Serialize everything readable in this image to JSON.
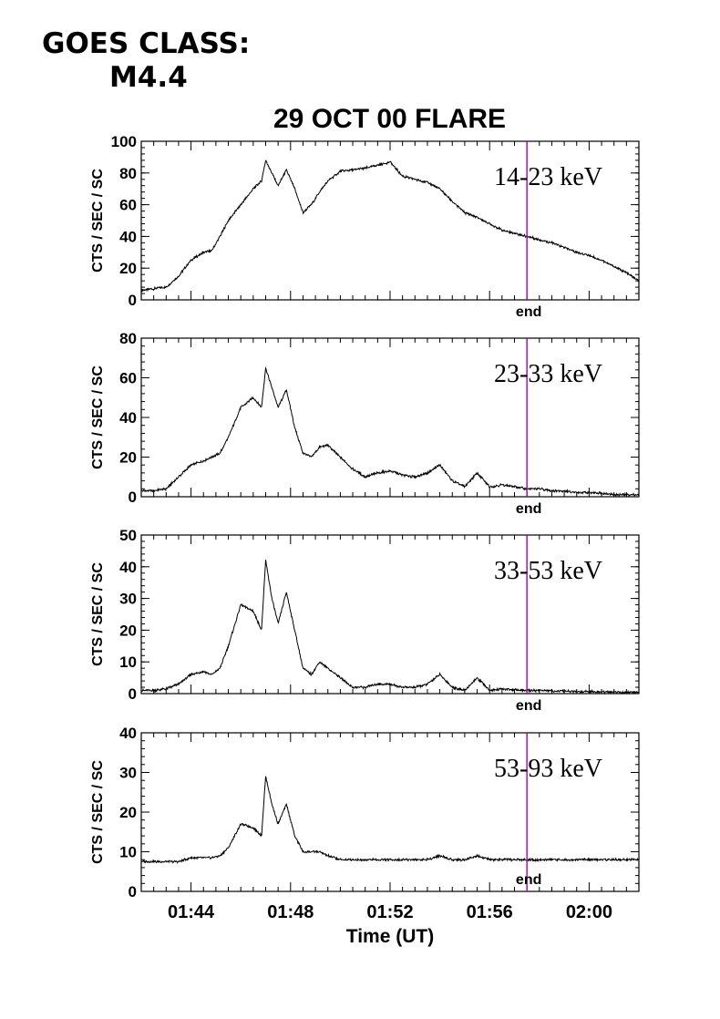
{
  "header": {
    "goes_label": "GOES CLASS:",
    "goes_value": "M4.4",
    "title": "29 OCT 00 FLARE"
  },
  "chart_data": [
    {
      "type": "line",
      "band": "14-23 keV",
      "ylabel": "CTS / SEC / SC",
      "ylim": [
        0,
        100
      ],
      "yticks": [
        0,
        20,
        40,
        60,
        80,
        100
      ],
      "xlim": [
        "01:42:00",
        "02:02:00"
      ],
      "end_marker": {
        "time": "01:57:30",
        "label": "end"
      },
      "x": [
        "01:42:00",
        "01:42:30",
        "01:43:00",
        "01:43:30",
        "01:44:00",
        "01:44:30",
        "01:44:50",
        "01:45:10",
        "01:45:30",
        "01:46:00",
        "01:46:30",
        "01:46:50",
        "01:47:00",
        "01:47:15",
        "01:47:30",
        "01:47:50",
        "01:48:10",
        "01:48:30",
        "01:48:50",
        "01:49:10",
        "01:49:30",
        "01:50:00",
        "01:50:30",
        "01:51:00",
        "01:51:30",
        "01:52:00",
        "01:52:30",
        "01:53:00",
        "01:53:30",
        "01:54:00",
        "01:54:30",
        "01:55:00",
        "01:55:30",
        "01:56:00",
        "01:56:30",
        "01:57:00",
        "01:57:30",
        "01:58:00",
        "01:58:30",
        "01:59:00",
        "01:59:30",
        "02:00:00",
        "02:00:30",
        "02:01:00",
        "02:01:30",
        "02:02:00"
      ],
      "y": [
        6,
        7,
        8,
        15,
        25,
        30,
        31,
        40,
        50,
        60,
        70,
        75,
        88,
        80,
        72,
        82,
        70,
        55,
        60,
        68,
        75,
        81,
        82,
        83,
        85,
        87,
        78,
        76,
        74,
        70,
        62,
        55,
        52,
        48,
        44,
        42,
        40,
        38,
        36,
        33,
        30,
        28,
        25,
        21,
        17,
        12
      ]
    },
    {
      "type": "line",
      "band": "23-33 keV",
      "ylabel": "CTS / SEC / SC",
      "ylim": [
        0,
        80
      ],
      "yticks": [
        0,
        20,
        40,
        60,
        80
      ],
      "xlim": [
        "01:42:00",
        "02:02:00"
      ],
      "end_marker": {
        "time": "01:57:30",
        "label": "end"
      },
      "x": [
        "01:42:00",
        "01:42:30",
        "01:43:00",
        "01:43:30",
        "01:44:00",
        "01:44:30",
        "01:44:50",
        "01:45:10",
        "01:45:30",
        "01:46:00",
        "01:46:30",
        "01:46:50",
        "01:47:00",
        "01:47:15",
        "01:47:30",
        "01:47:50",
        "01:48:10",
        "01:48:30",
        "01:48:50",
        "01:49:10",
        "01:49:30",
        "01:50:00",
        "01:50:30",
        "01:51:00",
        "01:51:30",
        "01:52:00",
        "01:52:30",
        "01:53:00",
        "01:53:30",
        "01:54:00",
        "01:54:30",
        "01:55:00",
        "01:55:30",
        "01:56:00",
        "01:56:30",
        "01:57:00",
        "01:57:30",
        "01:58:00",
        "01:58:30",
        "01:59:00",
        "01:59:30",
        "02:00:00",
        "02:00:30",
        "02:01:00",
        "02:01:30",
        "02:02:00"
      ],
      "y": [
        3,
        3,
        4,
        10,
        16,
        18,
        20,
        22,
        30,
        45,
        50,
        45,
        65,
        55,
        45,
        54,
        35,
        22,
        20,
        25,
        26,
        20,
        14,
        10,
        12,
        13,
        11,
        10,
        12,
        16,
        8,
        5,
        12,
        5,
        6,
        5,
        4,
        4,
        3,
        3,
        2,
        2,
        2,
        1,
        1,
        1
      ]
    },
    {
      "type": "line",
      "band": "33-53 keV",
      "ylabel": "CTS / SEC / SC",
      "ylim": [
        0,
        50
      ],
      "yticks": [
        0,
        10,
        20,
        30,
        40,
        50
      ],
      "xlim": [
        "01:42:00",
        "02:02:00"
      ],
      "end_marker": {
        "time": "01:57:30",
        "label": "end"
      },
      "x": [
        "01:42:00",
        "01:42:30",
        "01:43:00",
        "01:43:30",
        "01:44:00",
        "01:44:30",
        "01:44:50",
        "01:45:10",
        "01:45:30",
        "01:46:00",
        "01:46:30",
        "01:46:50",
        "01:47:00",
        "01:47:15",
        "01:47:30",
        "01:47:50",
        "01:48:10",
        "01:48:30",
        "01:48:50",
        "01:49:10",
        "01:49:30",
        "01:50:00",
        "01:50:30",
        "01:51:00",
        "01:51:30",
        "01:52:00",
        "01:52:30",
        "01:53:00",
        "01:53:30",
        "01:54:00",
        "01:54:30",
        "01:55:00",
        "01:55:30",
        "01:56:00",
        "01:56:30",
        "01:57:00",
        "01:57:30",
        "01:58:00",
        "01:58:30",
        "01:59:00",
        "01:59:30",
        "02:00:00",
        "02:00:30",
        "02:01:00",
        "02:01:30",
        "02:02:00"
      ],
      "y": [
        1,
        1,
        1.5,
        3,
        6,
        7,
        6,
        8,
        15,
        28,
        26,
        20,
        42,
        30,
        22,
        32,
        20,
        8,
        6,
        10,
        8,
        5,
        2,
        2,
        3,
        3,
        2,
        2,
        3,
        6,
        2,
        1,
        5,
        1,
        1.5,
        1.2,
        1,
        1,
        0.8,
        0.8,
        0.6,
        0.6,
        0.5,
        0.5,
        0.4,
        0.4
      ]
    },
    {
      "type": "line",
      "band": "53-93 keV",
      "ylabel": "CTS / SEC / SC",
      "ylim": [
        0,
        40
      ],
      "yticks": [
        0,
        10,
        20,
        30,
        40
      ],
      "xlim": [
        "01:42:00",
        "02:02:00"
      ],
      "end_marker": {
        "time": "01:57:30",
        "label": "end"
      },
      "x": [
        "01:42:00",
        "01:42:30",
        "01:43:00",
        "01:43:30",
        "01:44:00",
        "01:44:30",
        "01:44:50",
        "01:45:10",
        "01:45:30",
        "01:46:00",
        "01:46:30",
        "01:46:50",
        "01:47:00",
        "01:47:15",
        "01:47:30",
        "01:47:50",
        "01:48:10",
        "01:48:30",
        "01:48:50",
        "01:49:10",
        "01:49:30",
        "01:50:00",
        "01:50:30",
        "01:51:00",
        "01:51:30",
        "01:52:00",
        "01:52:30",
        "01:53:00",
        "01:53:30",
        "01:54:00",
        "01:54:30",
        "01:55:00",
        "01:55:30",
        "01:56:00",
        "01:56:30",
        "01:57:00",
        "01:57:30",
        "01:58:00",
        "01:58:30",
        "01:59:00",
        "01:59:30",
        "02:00:00",
        "02:00:30",
        "02:01:00",
        "02:01:30",
        "02:02:00"
      ],
      "y": [
        7.5,
        7.5,
        7.5,
        7.5,
        8.5,
        8.5,
        8.5,
        9,
        11,
        17,
        16,
        14,
        29,
        22,
        17,
        22,
        14,
        10,
        10,
        10,
        9,
        8,
        8,
        8,
        8,
        8,
        8,
        8,
        8,
        9,
        8,
        8,
        9,
        8,
        8,
        8,
        8,
        8,
        8,
        8,
        8,
        8,
        8,
        8,
        8,
        8
      ]
    }
  ],
  "x_axis": {
    "tick_labels": [
      "01:44",
      "01:48",
      "01:52",
      "01:56",
      "02:00"
    ],
    "tick_times": [
      "01:44:00",
      "01:48:00",
      "01:52:00",
      "01:56:00",
      "02:00:00"
    ],
    "title": "Time (UT)"
  },
  "colors": {
    "trace": "#000000",
    "end_line": "#b000b0",
    "axes": "#000000"
  }
}
